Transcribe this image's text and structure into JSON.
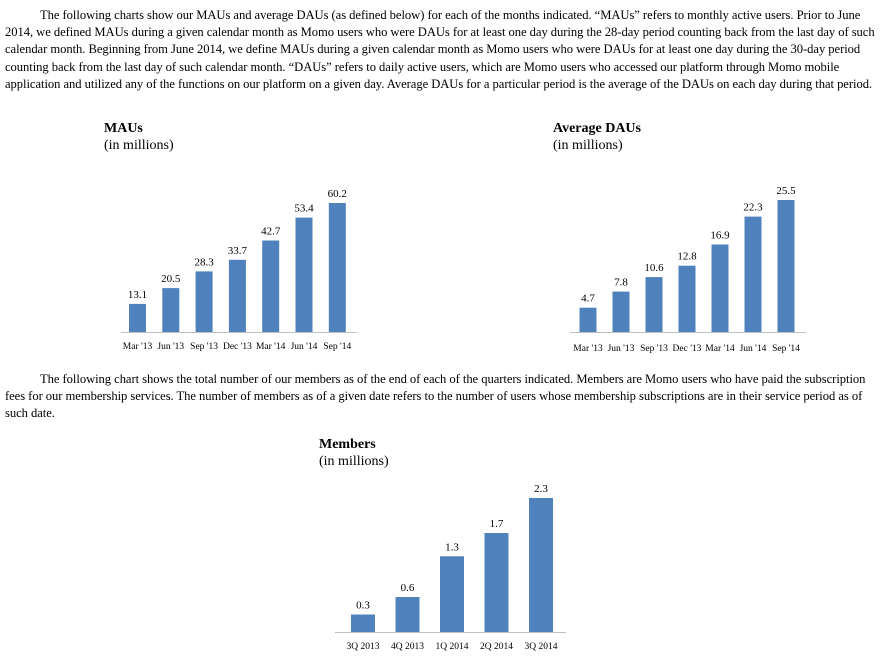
{
  "intro_paragraph": "The following charts show our MAUs and average DAUs (as defined below) for each of the months indicated. “MAUs” refers to monthly active users. Prior to June 2014, we defined MAUs during a given calendar month as Momo users who were DAUs for at least one day during the 28-day period counting back from the last day of such calendar month. Beginning from June 2014, we define MAUs during a given calendar month as Momo users who were DAUs for at least one day during the 30-day period counting back from the last day of such calendar month. “DAUs” refers to daily active users, which are Momo users who accessed our platform through Momo mobile application and utilized any of the functions on our platform on a given day. Average DAUs for a particular period is the average of the DAUs on each day during that period.",
  "members_paragraph": "The following chart shows the total number of our members as of the end of each of the quarters indicated. Members are Momo users who have paid the subscription fees for our membership services. The number of members as of a given date refers to the number of users whose membership subscriptions are in their service period as of such date.",
  "colors": {
    "bar": "#4f81bd",
    "axis": "#bfbfbf"
  },
  "chart_data": [
    {
      "id": "maus",
      "type": "bar",
      "title": "MAUs",
      "subtitle": "(in millions)",
      "categories": [
        "Mar '13",
        "Jun '13",
        "Sep '13",
        "Dec '13",
        "Mar '14",
        "Jun '14",
        "Sep '14"
      ],
      "values": [
        13.1,
        20.5,
        28.3,
        33.7,
        42.7,
        53.4,
        60.2
      ],
      "value_labels": [
        "13.1",
        "20.5",
        "28.3",
        "33.7",
        "42.7",
        "53.4",
        "60.2"
      ],
      "ylim": [
        0,
        60.2
      ],
      "xlabel": "",
      "ylabel": "",
      "grid": false
    },
    {
      "id": "daus",
      "type": "bar",
      "title": "Average DAUs",
      "subtitle": "(in millions)",
      "categories": [
        "Mar '13",
        "Jun '13",
        "Sep '13",
        "Dec '13",
        "Mar '14",
        "Jun '14",
        "Sep '14"
      ],
      "values": [
        4.7,
        7.8,
        10.6,
        12.8,
        16.9,
        22.3,
        25.5
      ],
      "value_labels": [
        "4.7",
        "7.8",
        "10.6",
        "12.8",
        "16.9",
        "22.3",
        "25.5"
      ],
      "ylim": [
        0,
        25.5
      ],
      "xlabel": "",
      "ylabel": "",
      "grid": false
    },
    {
      "id": "members",
      "type": "bar",
      "title": "Members",
      "subtitle": "(in millions)",
      "categories": [
        "3Q 2013",
        "4Q 2013",
        "1Q 2014",
        "2Q 2014",
        "3Q 2014"
      ],
      "values": [
        0.3,
        0.6,
        1.3,
        1.7,
        2.3
      ],
      "value_labels": [
        "0.3",
        "0.6",
        "1.3",
        "1.7",
        "2.3"
      ],
      "ylim": [
        0,
        2.3
      ],
      "xlabel": "",
      "ylabel": "",
      "grid": false
    }
  ]
}
